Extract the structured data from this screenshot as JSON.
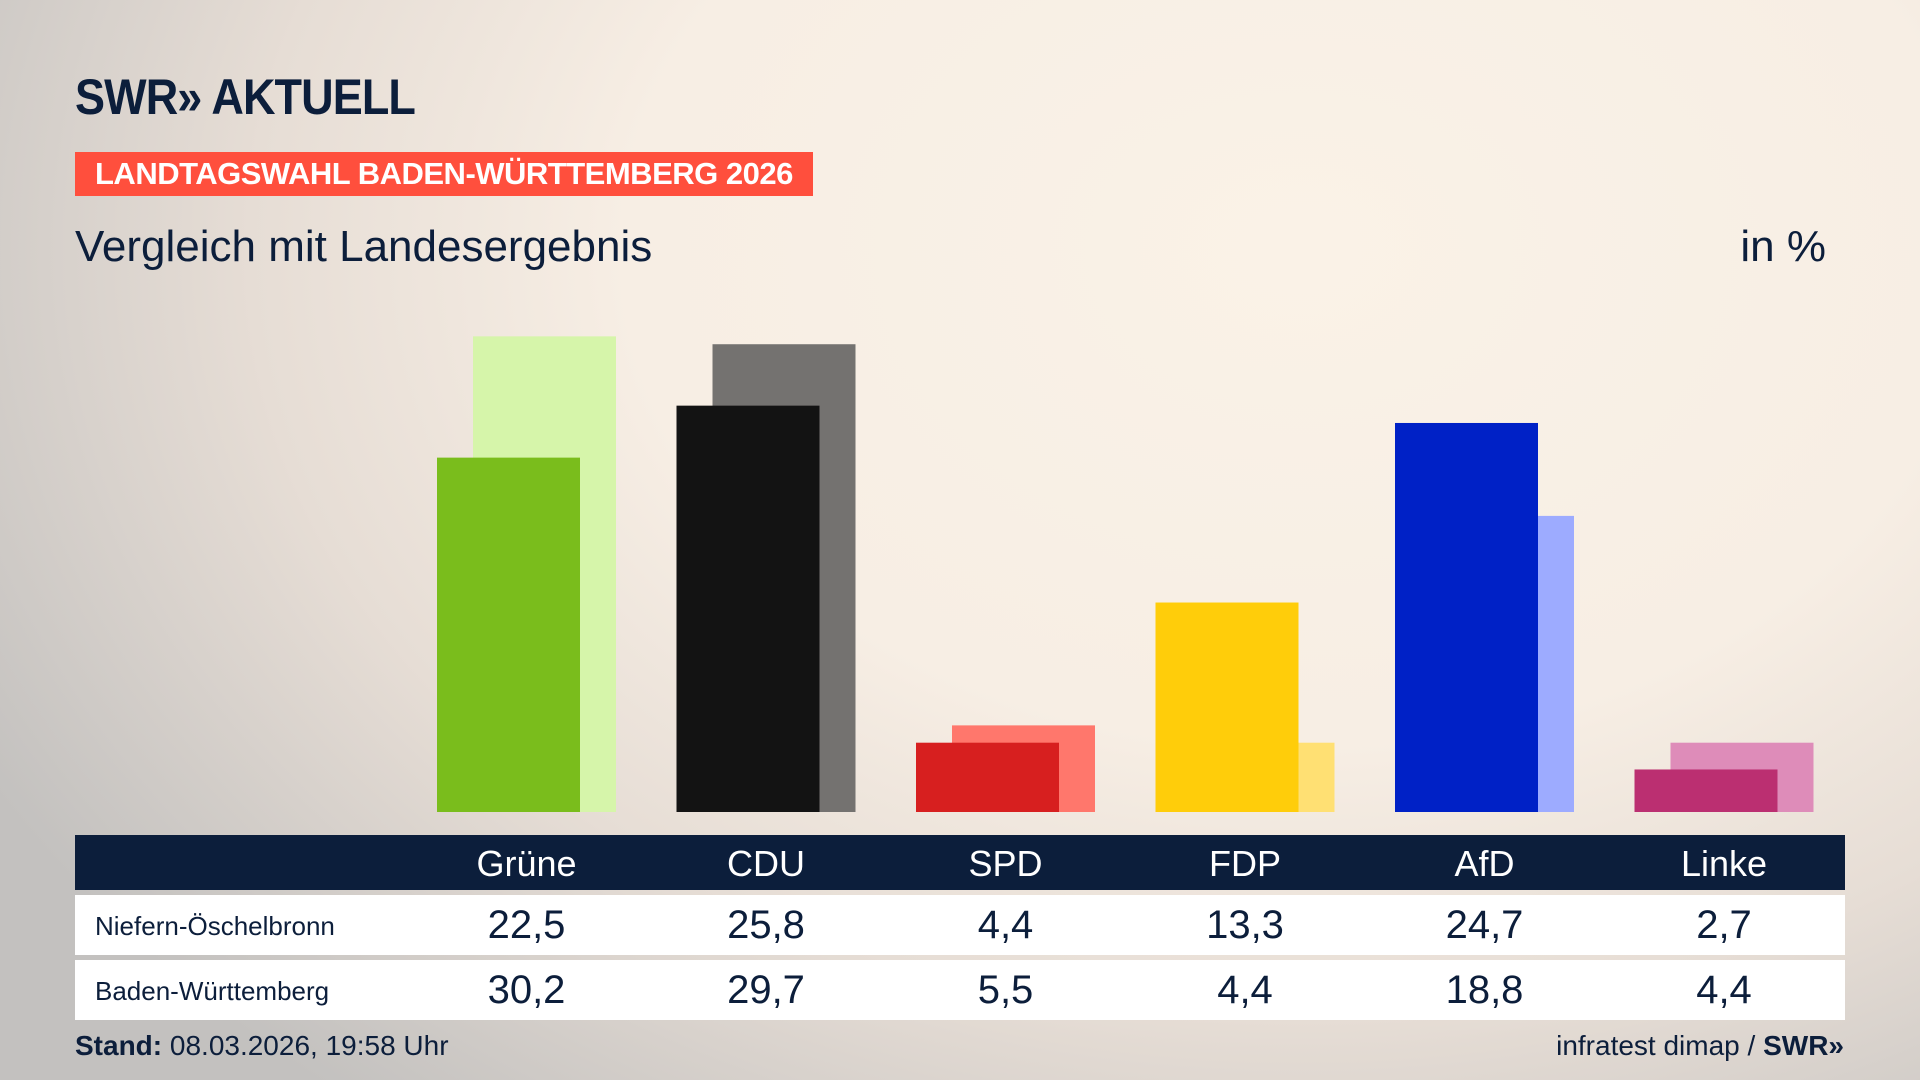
{
  "header": {
    "logo": "SWR» AKTUELL",
    "banner": "LANDTAGSWAHL BADEN-WÜRTTEMBERG 2026",
    "title": "Vergleich mit Landesergebnis",
    "unit": "in %"
  },
  "chart_data": {
    "type": "bar",
    "categories": [
      "Grüne",
      "CDU",
      "SPD",
      "FDP",
      "AfD",
      "Linke"
    ],
    "series": [
      {
        "name": "Niefern-Öschelbronn",
        "values": [
          22.5,
          25.8,
          4.4,
          13.3,
          24.7,
          2.7
        ],
        "colors": [
          "#7abd1c",
          "#131313",
          "#d71f1f",
          "#ffcd0a",
          "#0021c6",
          "#bb2f71"
        ]
      },
      {
        "name": "Baden-Württemberg",
        "values": [
          30.2,
          29.7,
          5.5,
          4.4,
          18.8,
          4.4
        ],
        "colors": [
          "#d6f5aa",
          "#747270",
          "#ff776c",
          "#ffe073",
          "#9dabff",
          "#de8cb9"
        ]
      }
    ],
    "display_values": [
      [
        "22,5",
        "25,8",
        "4,4",
        "13,3",
        "24,7",
        "2,7"
      ],
      [
        "30,2",
        "29,7",
        "5,5",
        "4,4",
        "18,8",
        "4,4"
      ]
    ]
  },
  "footer": {
    "stand_label": "Stand:",
    "stand_value": "08.03.2026, 19:58 Uhr",
    "source": "infratest dimap / ",
    "source_logo": "SWR»"
  }
}
